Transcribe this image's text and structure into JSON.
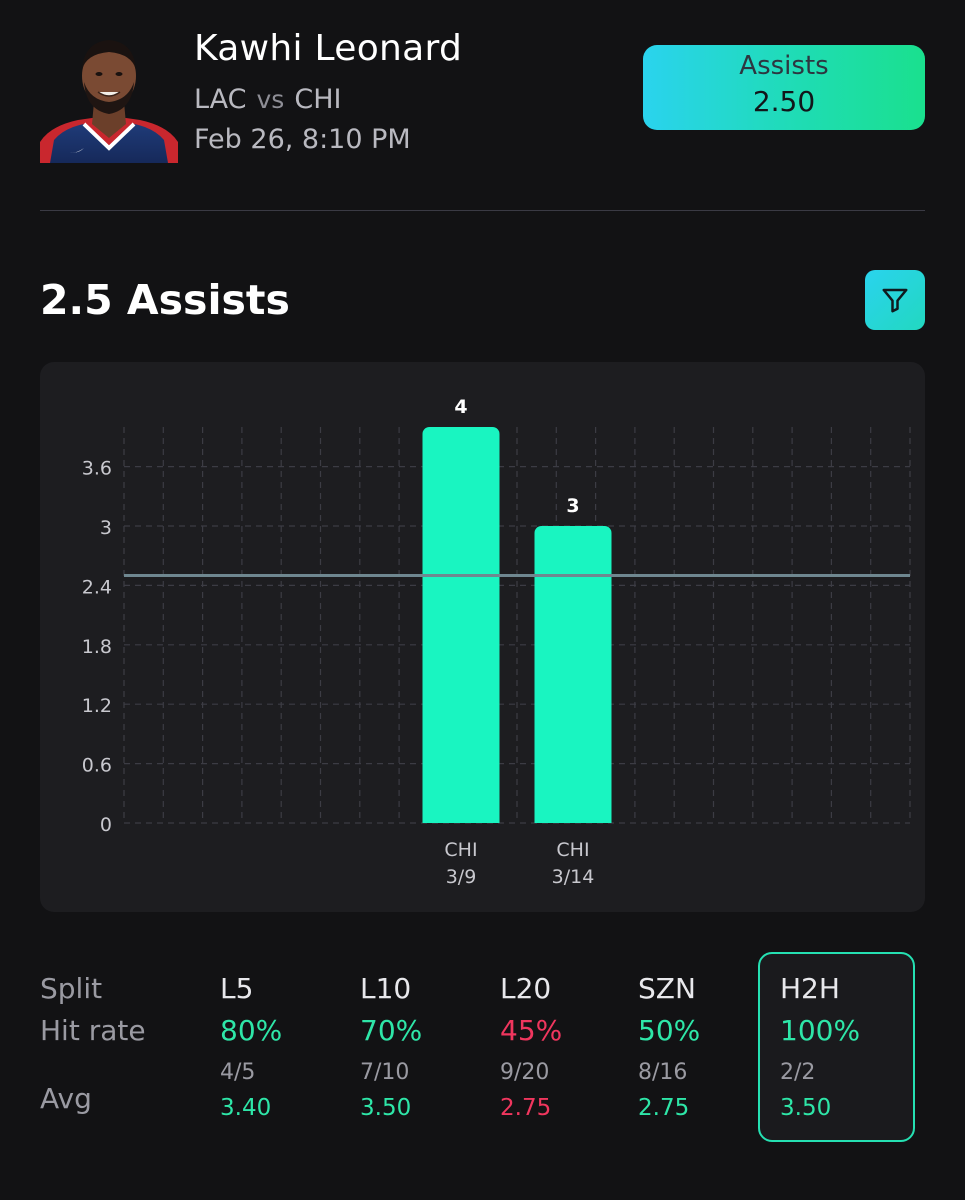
{
  "header": {
    "player_name": "Kawhi Leonard",
    "team": "LAC",
    "vs_label": "vs",
    "opponent": "CHI",
    "game_time": "Feb 26, 8:10 PM",
    "prop": {
      "stat": "Assists",
      "line": "2.50"
    }
  },
  "section": {
    "title": "2.5 Assists",
    "filter_icon": "funnel-icon"
  },
  "chart_data": {
    "type": "bar",
    "categories": [
      "CHI 3/9",
      "CHI 3/14"
    ],
    "category_labels": [
      {
        "opponent": "CHI",
        "date": "3/9"
      },
      {
        "opponent": "CHI",
        "date": "3/14"
      }
    ],
    "values": [
      4,
      3
    ],
    "data_labels": [
      "4",
      "3"
    ],
    "y_ticks": [
      "0",
      "0.6",
      "1.2",
      "1.8",
      "2.4",
      "3",
      "3.6"
    ],
    "ylim": [
      0,
      4
    ],
    "line_value": 2.5,
    "bar_color": "#19f5c1",
    "grid": true
  },
  "splits": {
    "row_labels": {
      "split": "Split",
      "hit_rate": "Hit rate",
      "avg": "Avg"
    },
    "columns": [
      {
        "period": "L5",
        "hit_rate": "80%",
        "count": "4/5",
        "avg": "3.40",
        "color": "#2ee6a8"
      },
      {
        "period": "L10",
        "hit_rate": "70%",
        "count": "7/10",
        "avg": "3.50",
        "color": "#2ee6a8"
      },
      {
        "period": "L20",
        "hit_rate": "45%",
        "count": "9/20",
        "avg": "2.75",
        "color": "#f0365e"
      },
      {
        "period": "SZN",
        "hit_rate": "50%",
        "count": "8/16",
        "avg": "2.75",
        "color": "#2ee6a8"
      },
      {
        "period": "H2H",
        "hit_rate": "100%",
        "count": "2/2",
        "avg": "3.50",
        "color": "#2ee6a8"
      }
    ]
  }
}
